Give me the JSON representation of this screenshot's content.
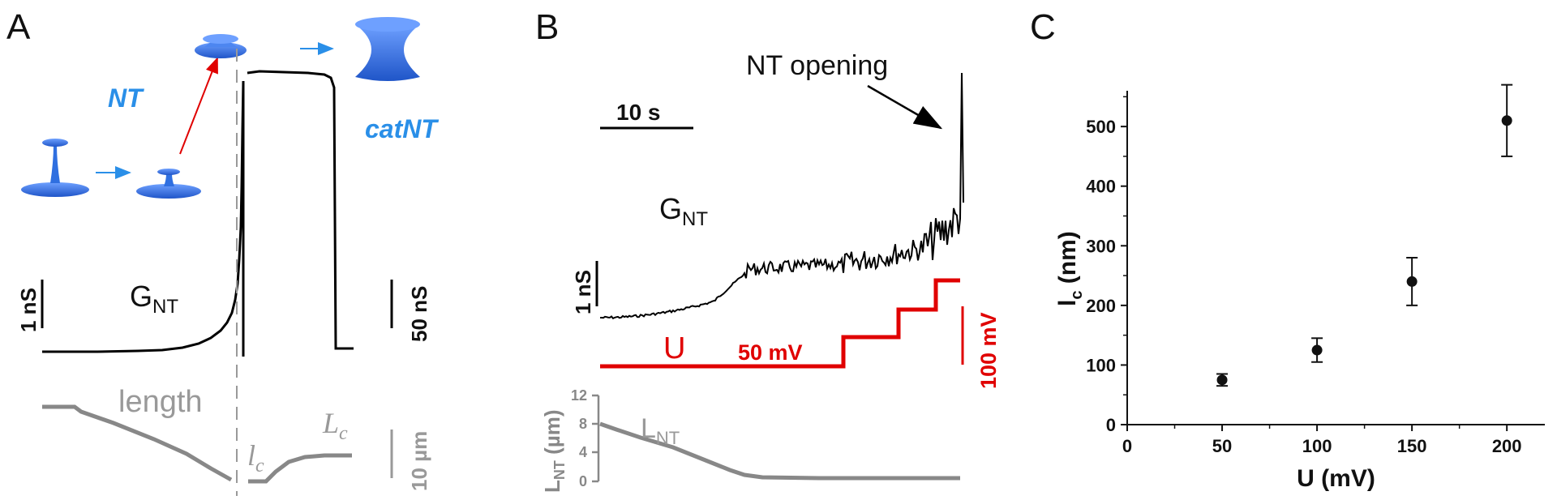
{
  "panels": {
    "a": {
      "letter": "A",
      "nt_label": "NT",
      "catnt_label": "catNT",
      "g_label": "G",
      "g_sub": "NT",
      "scale_left": "1 nS",
      "scale_right": "50 nS",
      "length_label": "length",
      "lc_small": "l",
      "lc_small_sub": "c",
      "lc_big": "L",
      "lc_big_sub": "c",
      "scale_length": "10 µm",
      "colors": {
        "trace": "#000000",
        "length": "#888888",
        "shape": "#2f6fe0",
        "label": "#2a8fe8",
        "arrow_red": "#e00000"
      }
    },
    "b": {
      "letter": "B",
      "annotation": "NT opening",
      "time_scale": "10 s",
      "g_label": "G",
      "g_sub": "NT",
      "scale_g": "1 nS",
      "u_label": "U",
      "u_step_label": "50 mV",
      "u_scale": "100 mV",
      "lnt_label": "L",
      "lnt_sub": "NT",
      "ylabel_main": "L",
      "ylabel_sub": "NT",
      "ylabel_unit": " (µm)",
      "yticks": [
        "0",
        "4",
        "8",
        "12"
      ],
      "colors": {
        "trace": "#000000",
        "voltage": "#e00000",
        "length": "#888888"
      }
    }
  },
  "chart_data": {
    "type": "scatter",
    "panel_letter": "C",
    "x": [
      50,
      100,
      150,
      200
    ],
    "y": [
      75,
      125,
      240,
      510
    ],
    "yerr": [
      10,
      20,
      40,
      60
    ],
    "xlabel": "U (mV)",
    "ylabel_main": "l",
    "ylabel_sub": "c",
    "ylabel_unit": " (nm)",
    "xlim": [
      0,
      220
    ],
    "ylim": [
      0,
      560
    ],
    "xticks": [
      0,
      50,
      100,
      150,
      200
    ],
    "yticks": [
      0,
      100,
      200,
      300,
      400,
      500
    ],
    "grid": false,
    "color": "#111111"
  }
}
